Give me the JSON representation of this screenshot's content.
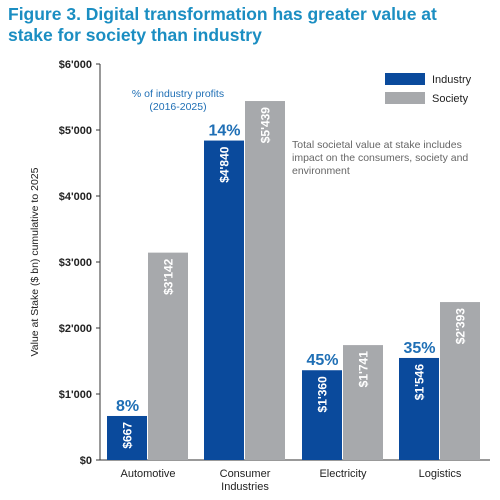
{
  "chart_data": {
    "type": "bar",
    "title": "Figure 3. Digital transformation has greater value at stake for society than industry",
    "y_label": "Value at Stake ($ bn) cumulative to 2025",
    "annotations": [
      "% of industry profits (2016-2025)",
      "Total societal value at stake includes impact on the consumers, society and environment"
    ],
    "categories": [
      "Automotive",
      "Consumer Industries",
      "Electricity",
      "Logistics"
    ],
    "series": [
      {
        "name": "Industry",
        "color": "#0a4a9c",
        "values": [
          667,
          4840,
          1360,
          1546
        ],
        "value_labels": [
          "$667",
          "$4'840",
          "$1'360",
          "$1'546"
        ],
        "profit_share_labels": [
          "8%",
          "14%",
          "45%",
          "35%"
        ]
      },
      {
        "name": "Society",
        "color": "#a7a9ac",
        "values": [
          3142,
          5439,
          1741,
          2393
        ],
        "value_labels": [
          "$3'142",
          "$5'439",
          "$1'741",
          "$2'393"
        ]
      }
    ],
    "ylim": [
      0,
      6000
    ],
    "yticks": [
      {
        "value": 0,
        "label": "$0"
      },
      {
        "value": 1000,
        "label": "$1'000"
      },
      {
        "value": 2000,
        "label": "$2'000"
      },
      {
        "value": 3000,
        "label": "$3'000"
      },
      {
        "value": 4000,
        "label": "$4'000"
      },
      {
        "value": 5000,
        "label": "$5'000"
      },
      {
        "value": 6000,
        "label": "$6'000"
      }
    ],
    "legend": "top-right"
  }
}
